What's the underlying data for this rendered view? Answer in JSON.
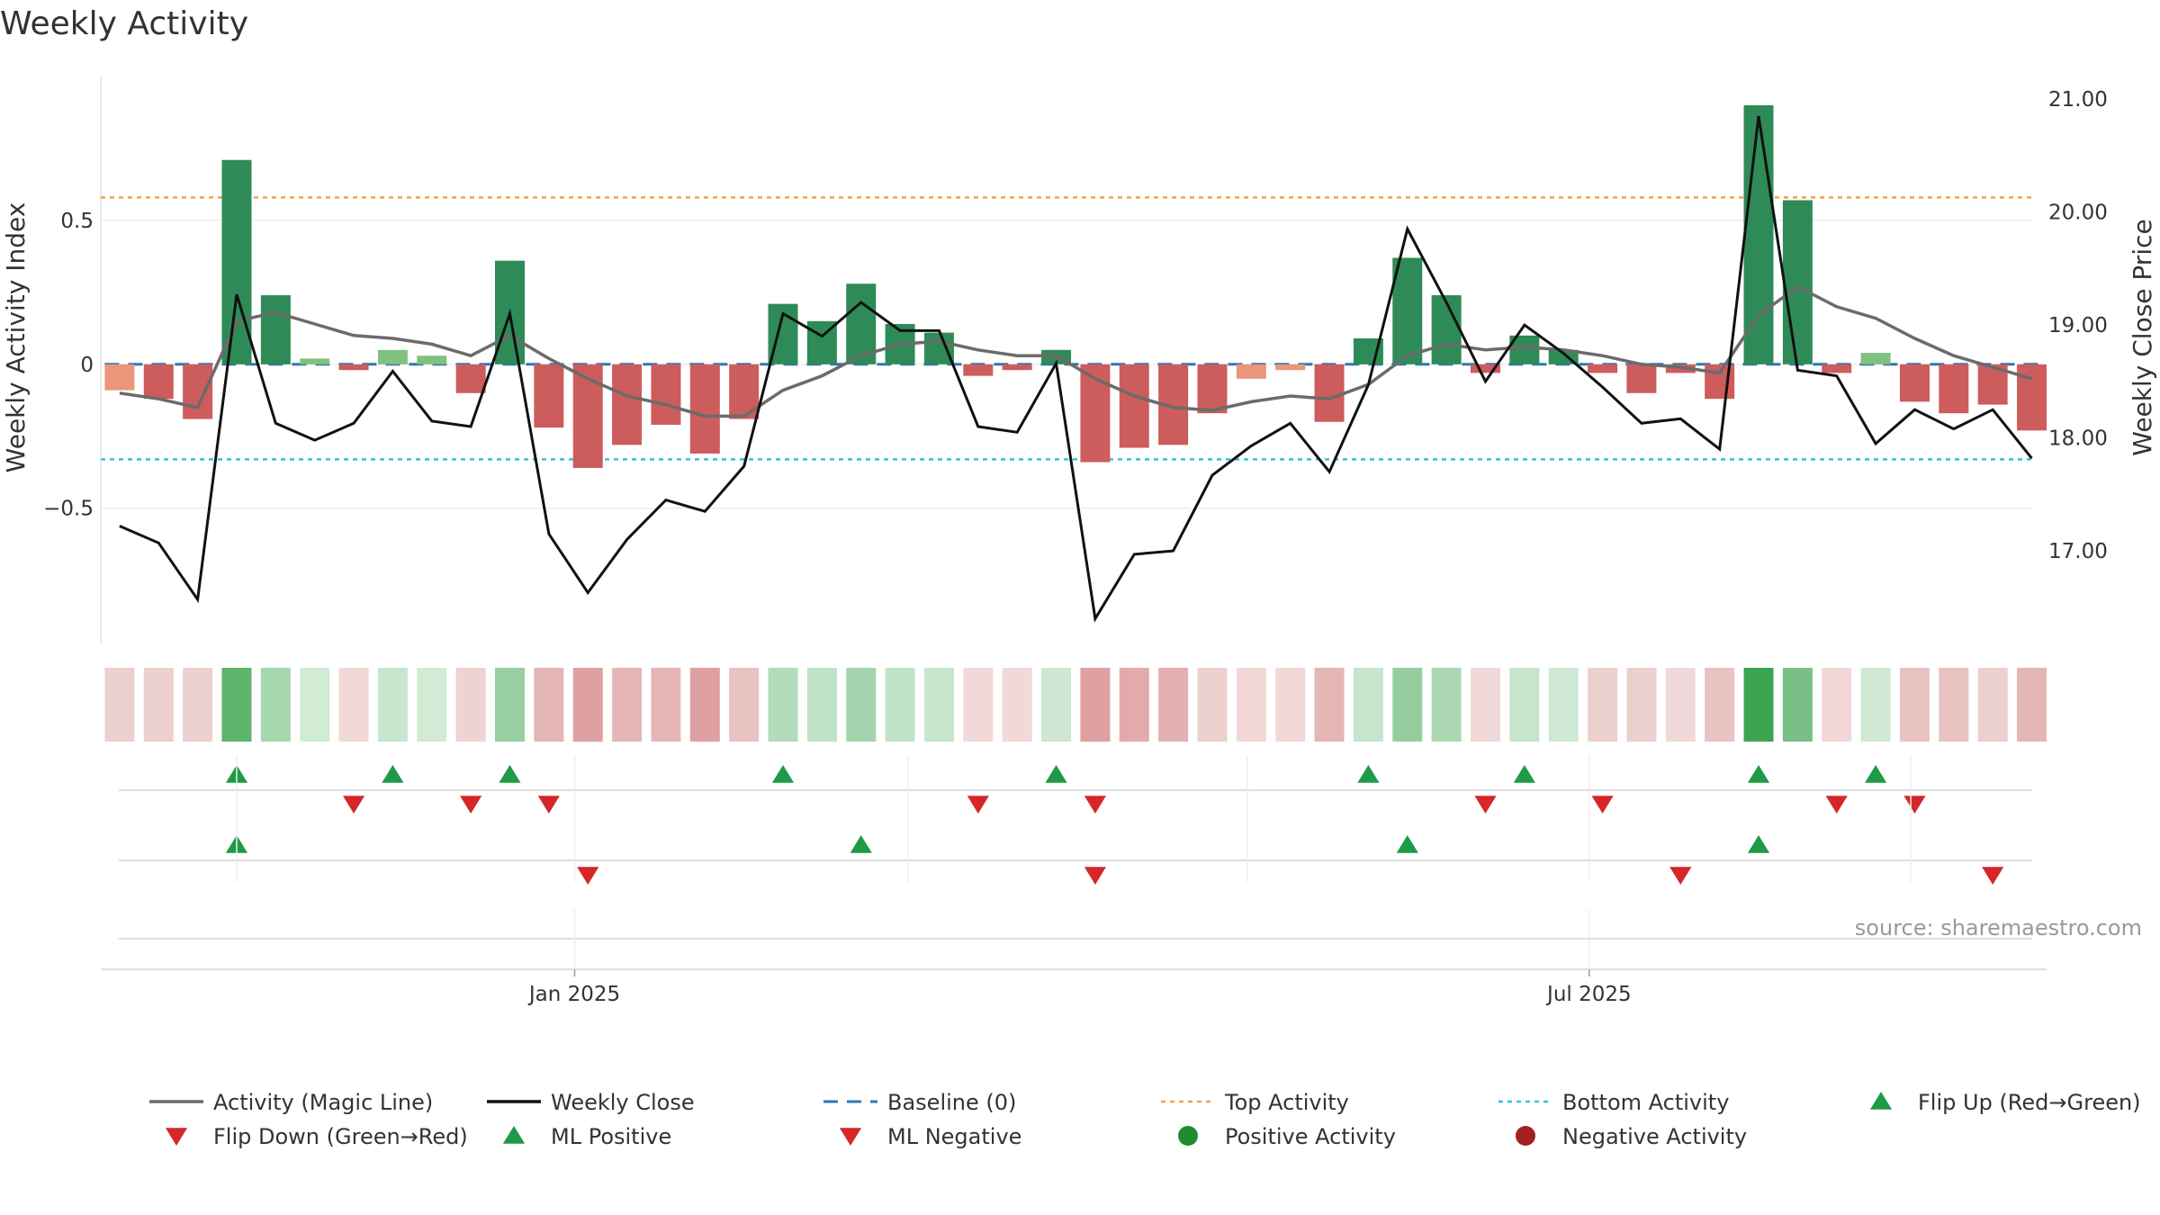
{
  "chart_data": {
    "type": "bar",
    "title": "Weekly Activity",
    "ylabel": "Weekly Activity Index",
    "y2label": "Weekly Close Price",
    "ylim": [
      -0.97,
      1.0
    ],
    "y2lim": [
      16.18,
      21.2
    ],
    "yticks": [
      {
        "v": 0.5,
        "label": "0.5"
      },
      {
        "v": 0,
        "label": "0"
      },
      {
        "v": -0.5,
        "label": "−0.5"
      }
    ],
    "y2ticks": [
      {
        "v": 21,
        "label": "21.00"
      },
      {
        "v": 20,
        "label": "20.00"
      },
      {
        "v": 19,
        "label": "19.00"
      },
      {
        "v": 18,
        "label": "18.00"
      },
      {
        "v": 17,
        "label": "17.00"
      }
    ],
    "xticks": [
      {
        "week": 11.66,
        "label": "Jan 2025"
      },
      {
        "week": 37.66,
        "label": "Jul 2025"
      }
    ],
    "weeks": 50,
    "activity": [
      -0.09,
      -0.12,
      -0.19,
      0.71,
      0.24,
      0.02,
      -0.02,
      0.05,
      0.03,
      -0.1,
      0.36,
      -0.22,
      -0.36,
      -0.28,
      -0.21,
      -0.31,
      -0.19,
      0.21,
      0.15,
      0.28,
      0.14,
      0.11,
      -0.04,
      -0.02,
      0.05,
      -0.34,
      -0.29,
      -0.28,
      -0.17,
      -0.05,
      -0.02,
      -0.2,
      0.09,
      0.37,
      0.24,
      -0.03,
      0.1,
      0.05,
      -0.03,
      -0.1,
      -0.03,
      -0.12,
      0.9,
      0.57,
      -0.03,
      0.04,
      -0.13,
      -0.17,
      -0.14,
      -0.23
    ],
    "magic_line": [
      -0.1,
      -0.12,
      -0.15,
      0.15,
      0.18,
      0.14,
      0.1,
      0.09,
      0.07,
      0.03,
      0.1,
      0.02,
      -0.05,
      -0.11,
      -0.14,
      -0.18,
      -0.18,
      -0.09,
      -0.04,
      0.03,
      0.07,
      0.08,
      0.05,
      0.03,
      0.03,
      -0.05,
      -0.11,
      -0.15,
      -0.16,
      -0.13,
      -0.11,
      -0.12,
      -0.07,
      0.03,
      0.07,
      0.05,
      0.06,
      0.05,
      0.03,
      0.0,
      -0.01,
      -0.03,
      0.17,
      0.27,
      0.2,
      0.16,
      0.09,
      0.03,
      -0.01,
      -0.05
    ],
    "weekly_close": [
      17.22,
      17.07,
      16.57,
      19.27,
      18.13,
      17.98,
      18.13,
      18.59,
      18.15,
      18.1,
      19.1,
      17.15,
      16.63,
      17.1,
      17.45,
      17.35,
      17.75,
      19.1,
      18.9,
      19.2,
      18.95,
      18.95,
      18.1,
      18.05,
      18.66,
      16.4,
      16.97,
      17.0,
      17.67,
      17.93,
      18.13,
      17.7,
      18.47,
      19.85,
      19.2,
      18.5,
      19.0,
      18.75,
      18.45,
      18.13,
      18.17,
      17.9,
      20.85,
      18.6,
      18.55,
      17.95,
      18.25,
      18.08,
      18.25,
      17.82
    ],
    "top_activity": 0.58,
    "bottom_activity": -0.33,
    "heat_colors": [
      "#ecd0cd",
      "#ecd0cd",
      "#ecd0cd",
      "#5cb56b",
      "#a6d8ae",
      "#d1ebd5",
      "#f1d8d7",
      "#c8e6cd",
      "#d1ebd5",
      "#eed3d2",
      "#98d0a2",
      "#e5b6b6",
      "#dfa0a1",
      "#e5b6b6",
      "#e6b6b6",
      "#dfa0a1",
      "#e9c2c2",
      "#b3dcbb",
      "#bfe2c6",
      "#a3d4ad",
      "#c1e3c8",
      "#c8e6cd",
      "#f0d9d8",
      "#f0d9d8",
      "#cde7d1",
      "#dfa0a1",
      "#e2aaab",
      "#e2b0b0",
      "#ecd0cd",
      "#f1d8d7",
      "#f1d8d7",
      "#e5b6b6",
      "#c7e4cc",
      "#94ce9f",
      "#abd8b3",
      "#f0d9d8",
      "#c7e4cc",
      "#cfe8d3",
      "#ecd0cd",
      "#ecd0cd",
      "#f0d9d8",
      "#e9c2c2",
      "#3ba551",
      "#7ac086",
      "#f1d8d7",
      "#cfe8d3",
      "#e9c2c2",
      "#e9c2c2",
      "#ecd0cd",
      "#e5b6b6"
    ],
    "flip_up_weeks": [
      3,
      7,
      10,
      17,
      24,
      32,
      36,
      42,
      45
    ],
    "flip_down_weeks": [
      6,
      9,
      11,
      22,
      25,
      35,
      38,
      44,
      46
    ],
    "ml_positive_weeks": [
      3,
      19,
      33,
      42
    ],
    "ml_negative_weeks": [
      12,
      25,
      40,
      48
    ],
    "source": "source: sharemaestro.com",
    "legend": [
      {
        "label": "Activity (Magic Line)",
        "kind": "line",
        "color": "#6b6b6b"
      },
      {
        "label": "Weekly Close",
        "kind": "line",
        "color": "#111111"
      },
      {
        "label": "Baseline (0)",
        "kind": "dash",
        "color": "#2f77b4"
      },
      {
        "label": "Top Activity",
        "kind": "dot",
        "color": "#f0a050"
      },
      {
        "label": "Bottom Activity",
        "kind": "dot",
        "color": "#31c4d6"
      },
      {
        "label": "Flip Up (Red→Green)",
        "kind": "tri-up",
        "color": "#1f9a47"
      },
      {
        "label": "Flip Down (Green→Red)",
        "kind": "tri-down",
        "color": "#d62728"
      },
      {
        "label": "ML Positive",
        "kind": "tri-up",
        "color": "#1f9a47"
      },
      {
        "label": "ML Negative",
        "kind": "tri-down",
        "color": "#d62728"
      },
      {
        "label": "Positive Activity",
        "kind": "circle",
        "color": "#1f8a2e"
      },
      {
        "label": "Negative Activity",
        "kind": "circle",
        "color": "#a32020"
      }
    ],
    "colors": {
      "strong_green": "#2e8b57",
      "light_green": "#7fc27f",
      "strong_red": "#cd5c5c",
      "light_red": "#e9967a",
      "magic_line": "#6b6b6b",
      "close_line": "#111111",
      "baseline": "#2f77b4",
      "top": "#f0a050",
      "bottom": "#31c4d6",
      "marker_green": "#1f9a47",
      "marker_red": "#d62728"
    }
  }
}
